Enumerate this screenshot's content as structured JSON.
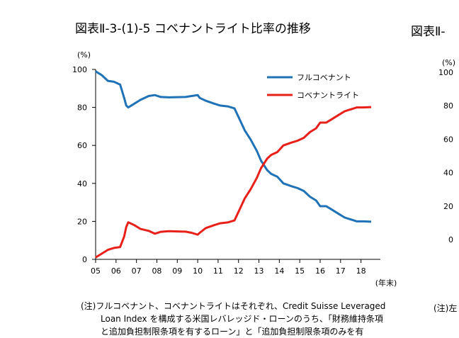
{
  "left_title": "図表Ⅱ-3-(1)-5 コベナントライト比率の推移",
  "right_title": "図表Ⅱ-",
  "notes": {
    "line1": "(注)フルコベナント、コベナントライトはそれぞれ、Credit Suisse Leveraged",
    "line2": "Loan Index を構成する米国レバレッジド・ローンのうち、「財務維持条項",
    "line3": "と追加負担制限条項を有するローン」と「追加負担制限条項のみを有"
  },
  "right_note": "(注)左",
  "chart_data": [
    {
      "type": "line",
      "title": "図表Ⅱ-3-(1)-5 コベナントライト比率の推移",
      "ylabel": "(%)",
      "xlabel": "(年末)",
      "ylim": [
        0,
        100
      ],
      "xlim": [
        2005.0,
        2018.7
      ],
      "yticks": [
        0,
        20,
        40,
        60,
        80,
        100
      ],
      "xticks": [
        2005,
        2006,
        2007,
        2008,
        2009,
        2010,
        2011,
        2012,
        2013,
        2014,
        2015,
        2016,
        2017,
        2018
      ],
      "xtick_labels": [
        "05",
        "06",
        "07",
        "08",
        "09",
        "10",
        "11",
        "12",
        "13",
        "14",
        "15",
        "16",
        "17",
        "18"
      ],
      "grid": false,
      "legend": "top-right",
      "series": [
        {
          "name": "フルコベナント",
          "color": "#1f72b6",
          "points": [
            [
              2005.0,
              99
            ],
            [
              2005.3,
              97
            ],
            [
              2005.6,
              94
            ],
            [
              2005.9,
              93.5
            ],
            [
              2006.2,
              92
            ],
            [
              2006.4,
              85
            ],
            [
              2006.5,
              81
            ],
            [
              2006.6,
              80
            ],
            [
              2006.9,
              82
            ],
            [
              2007.2,
              84
            ],
            [
              2007.6,
              86
            ],
            [
              2007.9,
              86.5
            ],
            [
              2008.2,
              85.5
            ],
            [
              2008.6,
              85.3
            ],
            [
              2009.0,
              85.4
            ],
            [
              2009.4,
              85.5
            ],
            [
              2009.7,
              86
            ],
            [
              2010.0,
              86.5
            ],
            [
              2010.1,
              85
            ],
            [
              2010.4,
              83.5
            ],
            [
              2010.8,
              82
            ],
            [
              2011.1,
              81
            ],
            [
              2011.5,
              80.5
            ],
            [
              2011.8,
              79.5
            ],
            [
              2012.0,
              75
            ],
            [
              2012.3,
              68
            ],
            [
              2012.6,
              63
            ],
            [
              2012.9,
              57
            ],
            [
              2013.1,
              52
            ],
            [
              2013.4,
              47
            ],
            [
              2013.6,
              45
            ],
            [
              2013.9,
              43.5
            ],
            [
              2014.2,
              40
            ],
            [
              2014.6,
              38.5
            ],
            [
              2014.9,
              37.5
            ],
            [
              2015.2,
              36
            ],
            [
              2015.5,
              33
            ],
            [
              2015.8,
              31
            ],
            [
              2016.0,
              28
            ],
            [
              2016.3,
              28
            ],
            [
              2016.6,
              26
            ],
            [
              2016.9,
              24
            ],
            [
              2017.2,
              22
            ],
            [
              2017.5,
              21
            ],
            [
              2017.8,
              20
            ],
            [
              2018.1,
              20
            ],
            [
              2018.5,
              19.8
            ]
          ]
        },
        {
          "name": "コベナントライト",
          "color": "#e8201a",
          "points": [
            [
              2005.0,
              1
            ],
            [
              2005.3,
              3
            ],
            [
              2005.6,
              5
            ],
            [
              2005.9,
              6
            ],
            [
              2006.2,
              6.5
            ],
            [
              2006.4,
              12
            ],
            [
              2006.5,
              17
            ],
            [
              2006.6,
              19.5
            ],
            [
              2006.9,
              18
            ],
            [
              2007.2,
              16
            ],
            [
              2007.6,
              15
            ],
            [
              2007.9,
              13.5
            ],
            [
              2008.2,
              14.5
            ],
            [
              2008.6,
              14.8
            ],
            [
              2009.0,
              14.7
            ],
            [
              2009.4,
              14.6
            ],
            [
              2009.7,
              14
            ],
            [
              2010.0,
              13
            ],
            [
              2010.1,
              14
            ],
            [
              2010.4,
              16.5
            ],
            [
              2010.8,
              18
            ],
            [
              2011.1,
              19
            ],
            [
              2011.5,
              19.5
            ],
            [
              2011.8,
              20.5
            ],
            [
              2012.0,
              25
            ],
            [
              2012.3,
              32
            ],
            [
              2012.6,
              37
            ],
            [
              2012.9,
              43
            ],
            [
              2013.1,
              48
            ],
            [
              2013.4,
              53
            ],
            [
              2013.6,
              55
            ],
            [
              2013.9,
              56.5
            ],
            [
              2014.2,
              60
            ],
            [
              2014.6,
              61.5
            ],
            [
              2014.9,
              62.5
            ],
            [
              2015.2,
              64
            ],
            [
              2015.5,
              67
            ],
            [
              2015.8,
              69
            ],
            [
              2016.0,
              72
            ],
            [
              2016.3,
              72
            ],
            [
              2016.6,
              74
            ],
            [
              2016.9,
              76
            ],
            [
              2017.2,
              78
            ],
            [
              2017.5,
              79
            ],
            [
              2017.8,
              80
            ],
            [
              2018.1,
              80
            ],
            [
              2018.5,
              80.2
            ]
          ]
        }
      ]
    },
    {
      "type": "line",
      "title": "図表Ⅱ-",
      "ylabel": "(%)",
      "ylim": [
        0,
        100
      ],
      "yticks": [
        0,
        20,
        40,
        60,
        80,
        100
      ]
    }
  ]
}
